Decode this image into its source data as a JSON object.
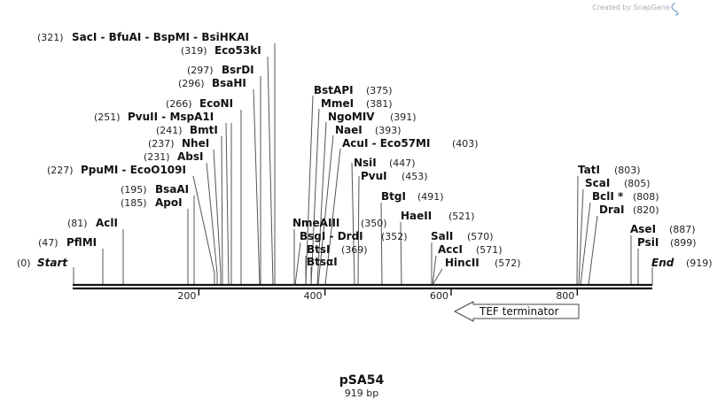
{
  "watermark": "Created by SnapGene",
  "plasmid": {
    "name": "pSA54",
    "length_label": "919 bp"
  },
  "sequence": {
    "start_label": "Start",
    "end_label": "End",
    "start_pos": 0,
    "end_pos": 919
  },
  "axis_ticks": [
    200,
    400,
    600,
    800
  ],
  "feature": {
    "label": "TEF terminator",
    "start": 609,
    "end": 808,
    "direction": "reverse"
  },
  "sites": [
    {
      "name": "PflMI",
      "pos": 47
    },
    {
      "name": "AclI",
      "pos": 81
    },
    {
      "name": "ApoI",
      "pos": 185
    },
    {
      "name": "BsaAI",
      "pos": 195
    },
    {
      "name": "PpuMI",
      "alt": "EcoO109I",
      "pos": 227
    },
    {
      "name": "AbsI",
      "pos": 231
    },
    {
      "name": "NheI",
      "pos": 237
    },
    {
      "name": "BmtI",
      "pos": 241
    },
    {
      "name": "PvuII",
      "alt": "MspA1I",
      "pos": 251
    },
    {
      "name": "EcoNI",
      "pos": 266
    },
    {
      "name": "BsaHI",
      "pos": 296
    },
    {
      "name": "BsrDI",
      "pos": 297
    },
    {
      "name": "Eco53kI",
      "pos": 319
    },
    {
      "name": "SacI",
      "alt": "BfuAI",
      "alt2": "BspMI",
      "alt3": "BsiHKAI",
      "pos": 321
    },
    {
      "name": "NmeAIII",
      "pos": 350
    },
    {
      "name": "BsgI",
      "alt": "DrdI",
      "pos": 352
    },
    {
      "name": "BtsI",
      "pos": 369
    },
    {
      "name": "BtsαI",
      "pos": 369
    },
    {
      "name": "BstAPI",
      "pos": 375
    },
    {
      "name": "MmeI",
      "pos": 381
    },
    {
      "name": "NgoMIV",
      "pos": 391
    },
    {
      "name": "NaeI",
      "pos": 393
    },
    {
      "name": "AcuI",
      "alt": "Eco57MI",
      "pos": 403
    },
    {
      "name": "NsiI",
      "pos": 447
    },
    {
      "name": "PvuI",
      "pos": 453
    },
    {
      "name": "BtgI",
      "pos": 491
    },
    {
      "name": "HaeII",
      "pos": 521
    },
    {
      "name": "SalI",
      "pos": 570
    },
    {
      "name": "AccI",
      "pos": 571
    },
    {
      "name": "HincII",
      "pos": 572
    },
    {
      "name": "TatI",
      "pos": 803
    },
    {
      "name": "ScaI",
      "pos": 805
    },
    {
      "name": "BclI *",
      "pos": 808
    },
    {
      "name": "DraI",
      "pos": 820
    },
    {
      "name": "AseI",
      "pos": 887
    },
    {
      "name": "PsiI",
      "pos": 899
    }
  ]
}
